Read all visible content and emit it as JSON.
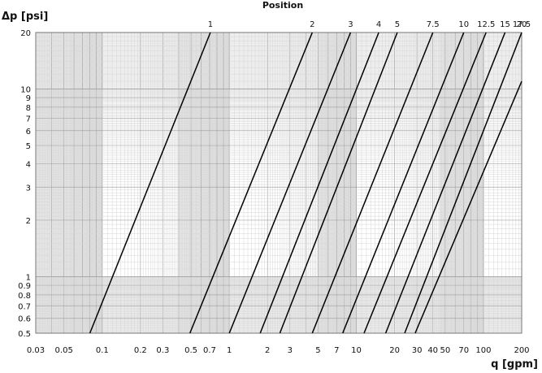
{
  "chart_data": {
    "type": "line",
    "title": "Position",
    "xlabel": "q [gpm]",
    "ylabel": "Δp [psi]",
    "x_scale": "log",
    "y_scale": "log",
    "xlim": [
      0.03,
      200
    ],
    "ylim": [
      0.5,
      20
    ],
    "grid": true,
    "x_tick_labels": [
      "0.03",
      "0.05",
      "0.1",
      "0.2",
      "0.3",
      "0.5",
      "0.7",
      "1",
      "2",
      "3",
      "5",
      "7",
      "10",
      "20",
      "30",
      "40",
      "50",
      "70",
      "100",
      "200"
    ],
    "y_tick_labels": [
      "0.5",
      "0.6",
      "0.7",
      "0.8",
      "0.9",
      "1",
      "2",
      "3",
      "4",
      "5",
      "6",
      "7",
      "8",
      "9",
      "10",
      "20"
    ],
    "series": [
      {
        "name": "1",
        "x": [
          0.08,
          0.71
        ],
        "y": [
          0.5,
          20
        ]
      },
      {
        "name": "2",
        "x": [
          0.49,
          4.5
        ],
        "y": [
          0.5,
          20
        ]
      },
      {
        "name": "3",
        "x": [
          1.0,
          9.0
        ],
        "y": [
          0.5,
          20
        ]
      },
      {
        "name": "4",
        "x": [
          1.75,
          15.0
        ],
        "y": [
          0.5,
          20
        ]
      },
      {
        "name": "5",
        "x": [
          2.5,
          21.0
        ],
        "y": [
          0.5,
          20
        ]
      },
      {
        "name": "7.5",
        "x": [
          4.5,
          40.0
        ],
        "y": [
          0.5,
          20
        ]
      },
      {
        "name": "10",
        "x": [
          7.8,
          70.0
        ],
        "y": [
          0.5,
          20
        ]
      },
      {
        "name": "12.5",
        "x": [
          11.5,
          105.0
        ],
        "y": [
          0.5,
          20
        ]
      },
      {
        "name": "15",
        "x": [
          17.0,
          148.0
        ],
        "y": [
          0.5,
          20
        ]
      },
      {
        "name": "17.5",
        "x": [
          24.0,
          200.0
        ],
        "y": [
          0.5,
          20
        ]
      },
      {
        "name": "20",
        "x": [
          29.0,
          200.0
        ],
        "y": [
          0.5,
          11
        ]
      }
    ]
  }
}
